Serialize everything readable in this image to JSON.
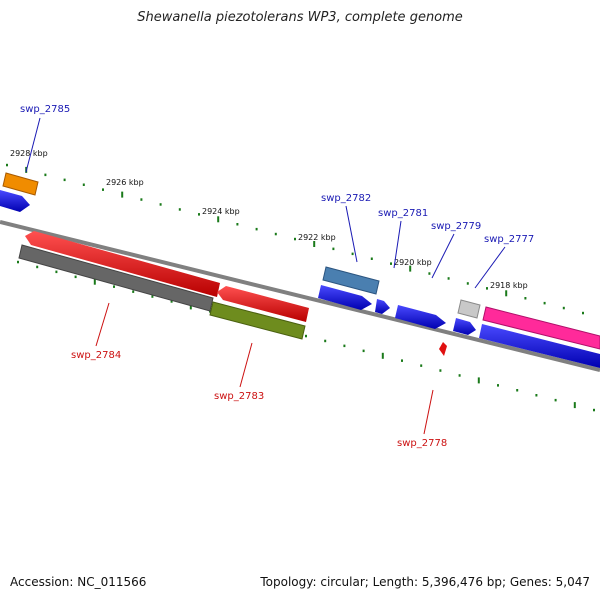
{
  "title": "Shewanella piezotolerans WP3, complete genome",
  "footer": {
    "accession": "Accession: NC_011566",
    "topology": "Topology: circular; Length: 5,396,476 bp; Genes: 5,047"
  },
  "scale_labels": [
    "2928 kbp",
    "2926 kbp",
    "2924 kbp",
    "2922 kbp",
    "2920 kbp",
    "2918 kbp"
  ],
  "gene_labels": {
    "top": [
      "swp_2785",
      "swp_2782",
      "swp_2781",
      "swp_2779",
      "swp_2777"
    ],
    "bottom": [
      "swp_2784",
      "swp_2783",
      "swp_2778"
    ]
  },
  "colors": {
    "backbone": "#808080",
    "tick": "#1a7a1a",
    "cds_forward": "#1010e0",
    "cds_reverse": "#e01010",
    "swp_2785": "#f08c00",
    "swp_2782": "#4a7fb0",
    "swp_2777": "#ff2a9a",
    "swp_2779": "#c8c8c8",
    "swp_2784": "#666666",
    "swp_2783": "#6e8c1e"
  }
}
